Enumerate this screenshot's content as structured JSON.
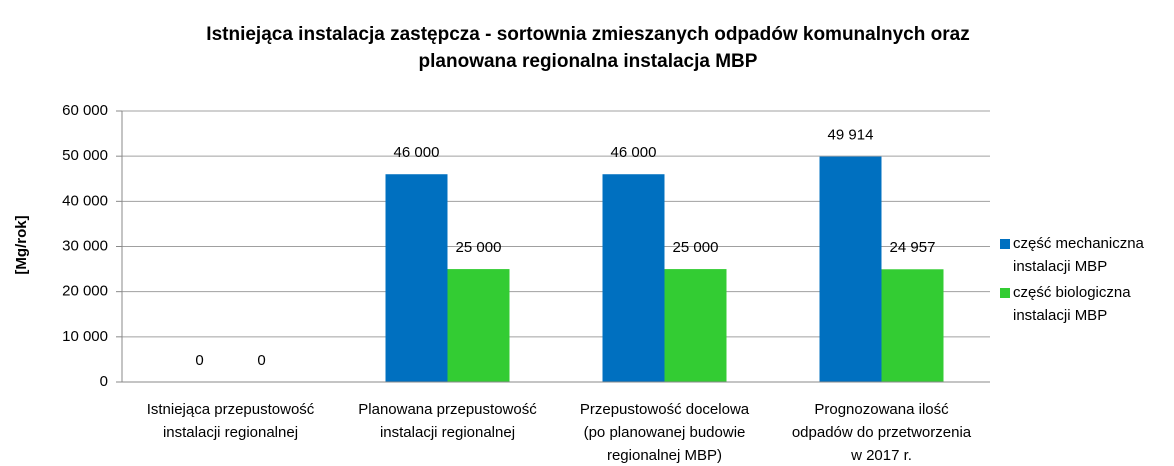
{
  "chart_data": {
    "type": "bar",
    "title": [
      "Istniejąca instalacja zastępcza - sortownia zmieszanych odpadów komunalnych oraz",
      "planowana regionalna instalacja MBP"
    ],
    "y_label": "[Mg/rok]",
    "categories": [
      [
        "Istniejąca przepustowość",
        "instalacji regionalnej"
      ],
      [
        "Planowana przepustowość",
        "instalacji regionalnej"
      ],
      [
        "Przepustowość docelowa",
        "(po planowanej budowie",
        "regionalnej MBP)"
      ],
      [
        "Prognozowana ilość",
        "odpadów do przetworzenia",
        "w 2017 r."
      ]
    ],
    "series": [
      {
        "name": [
          "część mechaniczna",
          "instalacji MBP"
        ],
        "color": "#0070c0",
        "values": [
          0,
          46000,
          46000,
          49914
        ],
        "value_labels": [
          "0",
          "46 000",
          "46 000",
          "49 914"
        ]
      },
      {
        "name": [
          "część biologiczna",
          "instalacji MBP"
        ],
        "color": "#33cc33",
        "values": [
          0,
          25000,
          25000,
          24957
        ],
        "value_labels": [
          "0",
          "25 000",
          "25 000",
          "24 957"
        ]
      }
    ],
    "ylim": [
      0,
      60000
    ],
    "yticks": [
      0,
      {
        "value": 10000,
        "label": "10 000"
      },
      {
        "value": 20000,
        "label": "20 000"
      },
      {
        "value": 30000,
        "label": "30 000"
      },
      {
        "value": 40000,
        "label": "40 000"
      },
      {
        "value": 50000,
        "label": "50 000"
      },
      {
        "value": 60000,
        "label": "60 000"
      }
    ],
    "grid": true,
    "legend": "right"
  }
}
